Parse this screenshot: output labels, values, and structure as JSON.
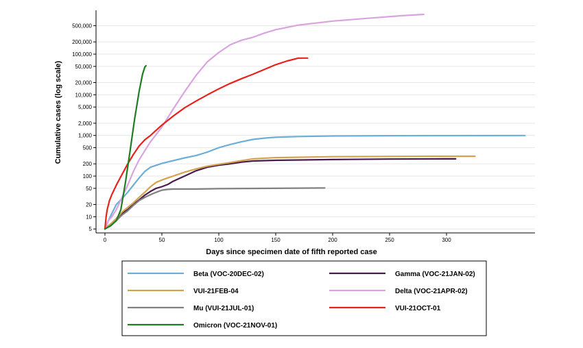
{
  "chart_data": {
    "type": "line",
    "title": "",
    "xlabel": "Days since specimen date of fifth reported case",
    "ylabel": "Cumulative cases (log scale)",
    "y_scale": "log",
    "xlim": [
      -8,
      375
    ],
    "ylim": [
      4,
      1200000
    ],
    "grid": true,
    "legend_position": "bottom",
    "x_ticks": [
      0,
      50,
      100,
      150,
      200,
      250,
      300
    ],
    "y_ticks": [
      5,
      10,
      20,
      50,
      100,
      200,
      500,
      1000,
      2000,
      5000,
      10000,
      20000,
      50000,
      100000,
      200000,
      500000
    ],
    "y_tick_labels": [
      "5",
      "10",
      "20",
      "50",
      "100",
      "200",
      "500",
      "1,000",
      "2,000",
      "5,000",
      "10,000",
      "20,000",
      "50,000",
      "100,000",
      "200,000",
      "500,000"
    ],
    "series": [
      {
        "name": "Beta (VOC-20DEC-02)",
        "color": "#6baed6",
        "x": [
          0,
          3,
          6,
          10,
          15,
          20,
          25,
          30,
          35,
          40,
          50,
          60,
          70,
          80,
          90,
          100,
          110,
          120,
          130,
          140,
          150,
          170,
          200,
          250,
          300,
          369
        ],
        "y": [
          5,
          8,
          12,
          20,
          28,
          40,
          60,
          90,
          130,
          165,
          205,
          240,
          280,
          320,
          390,
          500,
          600,
          700,
          800,
          860,
          900,
          940,
          970,
          985,
          990,
          995
        ]
      },
      {
        "name": "Gamma (VOC-21JAN-02)",
        "color": "#4a1a4f",
        "x": [
          0,
          3,
          6,
          10,
          15,
          20,
          25,
          30,
          35,
          40,
          45,
          50,
          55,
          60,
          70,
          80,
          90,
          100,
          110,
          120,
          130,
          150,
          200,
          250,
          300,
          308
        ],
        "y": [
          5,
          6,
          7,
          9,
          12,
          15,
          20,
          26,
          34,
          42,
          50,
          55,
          62,
          75,
          100,
          135,
          165,
          185,
          200,
          220,
          235,
          245,
          255,
          262,
          265,
          265
        ]
      },
      {
        "name": "VUI-21FEB-04",
        "color": "#d4a24c",
        "x": [
          0,
          3,
          6,
          10,
          15,
          20,
          25,
          30,
          35,
          40,
          45,
          50,
          55,
          60,
          70,
          80,
          90,
          100,
          110,
          120,
          130,
          150,
          200,
          250,
          300,
          325
        ],
        "y": [
          5,
          6,
          7,
          9,
          13,
          17,
          22,
          30,
          40,
          55,
          70,
          80,
          90,
          100,
          125,
          150,
          175,
          195,
          215,
          240,
          265,
          285,
          300,
          305,
          308,
          308
        ]
      },
      {
        "name": "Delta (VOC-21APR-02)",
        "color": "#d9a3e0",
        "x": [
          0,
          3,
          6,
          10,
          15,
          20,
          25,
          30,
          35,
          40,
          50,
          60,
          70,
          80,
          90,
          100,
          110,
          120,
          130,
          140,
          150,
          170,
          200,
          230,
          260,
          280
        ],
        "y": [
          5,
          8,
          10,
          15,
          30,
          60,
          130,
          250,
          420,
          700,
          1600,
          4500,
          12000,
          30000,
          65000,
          110000,
          170000,
          220000,
          260000,
          330000,
          400000,
          520000,
          650000,
          760000,
          880000,
          950000
        ]
      },
      {
        "name": "Mu (VUI-21JUL-01)",
        "color": "#808080",
        "x": [
          0,
          5,
          10,
          15,
          20,
          25,
          30,
          35,
          40,
          45,
          50,
          55,
          60,
          80,
          100,
          150,
          193
        ],
        "y": [
          5,
          6,
          8,
          11,
          14,
          19,
          25,
          30,
          35,
          40,
          45,
          47,
          48,
          48,
          49,
          50,
          51
        ]
      },
      {
        "name": "VUI-21OCT-01",
        "color": "#e8221b",
        "x": [
          0,
          1,
          2,
          4,
          6,
          10,
          15,
          20,
          25,
          30,
          35,
          40,
          50,
          60,
          70,
          80,
          90,
          100,
          110,
          120,
          130,
          140,
          150,
          160,
          170,
          178
        ],
        "y": [
          5,
          10,
          15,
          25,
          35,
          60,
          110,
          200,
          340,
          550,
          780,
          1000,
          1800,
          3000,
          4800,
          7000,
          10000,
          14000,
          19000,
          25000,
          32000,
          42000,
          55000,
          68000,
          80000,
          80000
        ]
      },
      {
        "name": "Omicron (VOC-21NOV-01)",
        "color": "#1e7d22",
        "x": [
          0,
          5,
          10,
          14,
          18,
          22,
          26,
          30,
          33,
          35,
          36
        ],
        "y": [
          5,
          6,
          8,
          15,
          70,
          400,
          2500,
          12000,
          32000,
          48000,
          52000
        ]
      }
    ]
  },
  "legend": {
    "items": [
      "Beta (VOC-20DEC-02)",
      "Gamma (VOC-21JAN-02)",
      "VUI-21FEB-04",
      "Delta (VOC-21APR-02)",
      "Mu (VUI-21JUL-01)",
      "VUI-21OCT-01",
      "Omicron (VOC-21NOV-01)"
    ]
  }
}
